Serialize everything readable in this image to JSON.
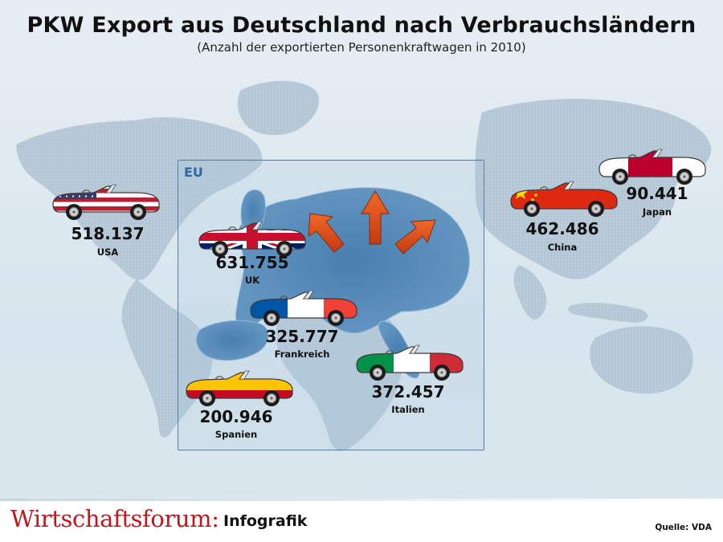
{
  "title": "PKW Export aus Deutschland nach Verbrauchsländern",
  "subtitle": "(Anzahl der exportierten Personenkraftwagen in 2010)",
  "eu_label": "EU",
  "footer": {
    "brand": "Wirtschaftsforum:",
    "brand_sub": "Infografik",
    "source": "Quelle: VDA"
  },
  "chart_data": {
    "type": "table",
    "title": "PKW Export aus Deutschland nach Verbrauchsländern",
    "subtitle": "(Anzahl der exportierten Personenkraftwagen in 2010)",
    "group_label": "EU",
    "entries": [
      {
        "country": "USA",
        "value": 518137,
        "label": "518.137",
        "eu": false,
        "flag": "usa",
        "colors": [
          "#b22234",
          "#ffffff",
          "#3c3b6e"
        ]
      },
      {
        "country": "UK",
        "value": 631755,
        "label": "631.755",
        "eu": true,
        "flag": "uk",
        "colors": [
          "#012169",
          "#ffffff",
          "#c8102e"
        ]
      },
      {
        "country": "Frankreich",
        "value": 325777,
        "label": "325.777",
        "eu": true,
        "flag": "france",
        "colors": [
          "#0055a4",
          "#ffffff",
          "#ef4135"
        ]
      },
      {
        "country": "Spanien",
        "value": 200946,
        "label": "200.946",
        "eu": true,
        "flag": "spain",
        "colors": [
          "#c60b1e",
          "#ffc400"
        ]
      },
      {
        "country": "Italien",
        "value": 372457,
        "label": "372.457",
        "eu": true,
        "flag": "italy",
        "colors": [
          "#009246",
          "#ffffff",
          "#ce2b37"
        ]
      },
      {
        "country": "China",
        "value": 462486,
        "label": "462.486",
        "eu": false,
        "flag": "china",
        "colors": [
          "#de2910",
          "#ffde00"
        ]
      },
      {
        "country": "Japan",
        "value": 90441,
        "label": "90.441",
        "eu": false,
        "flag": "japan",
        "colors": [
          "#ffffff",
          "#bc002d"
        ]
      }
    ]
  }
}
